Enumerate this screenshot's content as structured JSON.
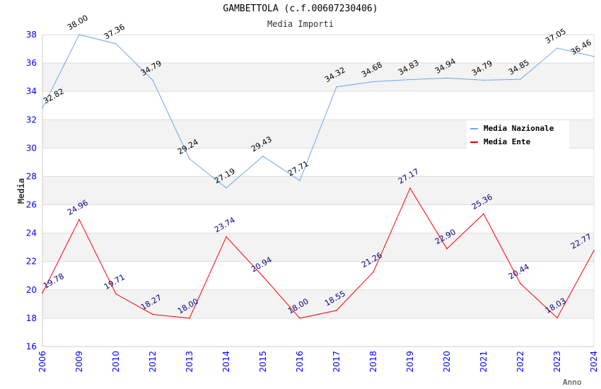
{
  "chart_data": {
    "type": "line",
    "title": "GAMBETTOLA (c.f.00607230406)",
    "subtitle": "Media Importi",
    "xlabel": "Anno",
    "ylabel": "Media",
    "ylim": [
      16,
      38
    ],
    "yticks": [
      "16",
      "18",
      "20",
      "22",
      "24",
      "26",
      "28",
      "30",
      "32",
      "34",
      "36",
      "38"
    ],
    "grid": true,
    "legend_position": "top-right",
    "categories": [
      "2006",
      "2009",
      "2010",
      "2012",
      "2013",
      "2014",
      "2015",
      "2016",
      "2017",
      "2018",
      "2019",
      "2020",
      "2021",
      "2022",
      "2023",
      "2024"
    ],
    "series": [
      {
        "name": "Media Nazionale",
        "color": "#6aaaf0",
        "label_color": "#000000",
        "values": [
          32.82,
          38.0,
          37.36,
          34.79,
          29.24,
          27.19,
          29.43,
          27.71,
          34.32,
          34.68,
          34.83,
          34.94,
          34.79,
          34.85,
          37.05,
          36.46
        ]
      },
      {
        "name": "Media Ente",
        "color": "#ff0000",
        "label_color": "#000080",
        "values": [
          19.78,
          24.96,
          19.71,
          18.27,
          18.0,
          23.74,
          20.94,
          18.0,
          18.55,
          21.26,
          27.17,
          22.9,
          25.36,
          20.44,
          18.03,
          22.77
        ]
      }
    ]
  }
}
